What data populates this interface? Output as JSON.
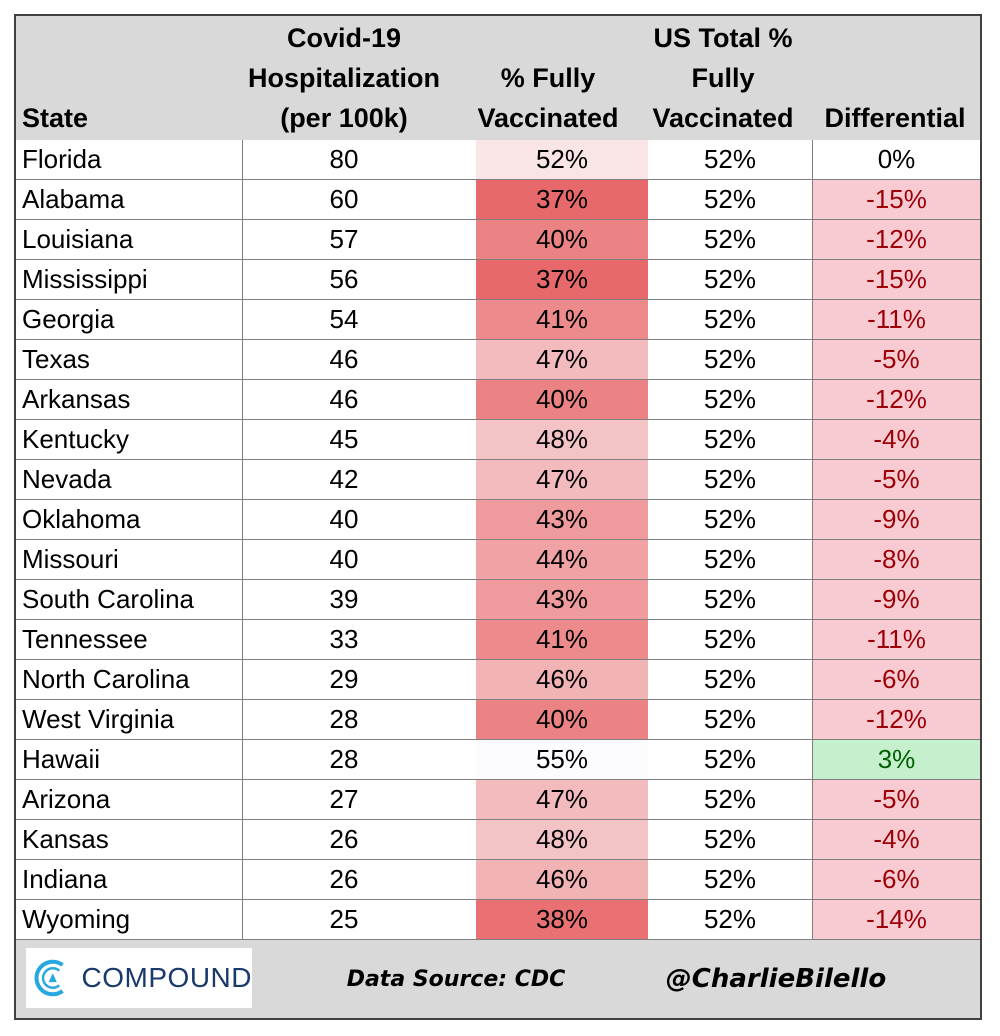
{
  "chart_data": {
    "type": "table",
    "columns": [
      "State",
      "Covid-19\nHospitalization\n(per 100k)",
      "% Fully\nVaccinated",
      "US Total %\nFully\nVaccinated",
      "Differential"
    ],
    "rows": [
      [
        "Florida",
        "80",
        "52%",
        "52%",
        "0%"
      ],
      [
        "Alabama",
        "60",
        "37%",
        "52%",
        "-15%"
      ],
      [
        "Louisiana",
        "57",
        "40%",
        "52%",
        "-12%"
      ],
      [
        "Mississippi",
        "56",
        "37%",
        "52%",
        "-15%"
      ],
      [
        "Georgia",
        "54",
        "41%",
        "52%",
        "-11%"
      ],
      [
        "Texas",
        "46",
        "47%",
        "52%",
        "-5%"
      ],
      [
        "Arkansas",
        "46",
        "40%",
        "52%",
        "-12%"
      ],
      [
        "Kentucky",
        "45",
        "48%",
        "52%",
        "-4%"
      ],
      [
        "Nevada",
        "42",
        "47%",
        "52%",
        "-5%"
      ],
      [
        "Oklahoma",
        "40",
        "43%",
        "52%",
        "-9%"
      ],
      [
        "Missouri",
        "40",
        "44%",
        "52%",
        "-8%"
      ],
      [
        "South Carolina",
        "39",
        "43%",
        "52%",
        "-9%"
      ],
      [
        "Tennessee",
        "33",
        "41%",
        "52%",
        "-11%"
      ],
      [
        "North Carolina",
        "29",
        "46%",
        "52%",
        "-6%"
      ],
      [
        "West Virginia",
        "28",
        "40%",
        "52%",
        "-12%"
      ],
      [
        "Hawaii",
        "28",
        "55%",
        "52%",
        "3%"
      ],
      [
        "Arizona",
        "27",
        "47%",
        "52%",
        "-5%"
      ],
      [
        "Kansas",
        "26",
        "48%",
        "52%",
        "-4%"
      ],
      [
        "Indiana",
        "26",
        "46%",
        "52%",
        "-6%"
      ],
      [
        "Wyoming",
        "25",
        "38%",
        "52%",
        "-14%"
      ]
    ]
  },
  "colors": {
    "header_bg": "#d9d9d9",
    "neg_diff_bg": "#f8cbd2",
    "neg_diff_text": "#9c0006",
    "pos_diff_bg": "#c6efce",
    "pos_diff_text": "#006100",
    "heat_low": "#e8696b",
    "heat_high": "#fcfcff"
  },
  "footer": {
    "logo": "COMPOUND",
    "source": "Data Source: CDC",
    "handle": "@CharlieBilello"
  }
}
